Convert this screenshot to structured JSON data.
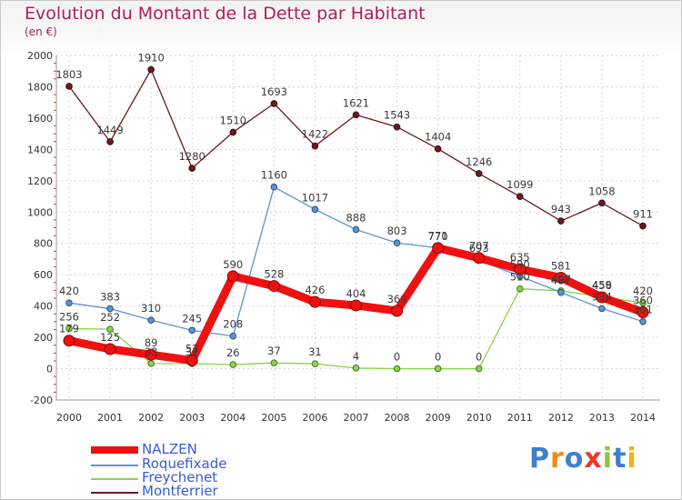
{
  "chart_data": {
    "type": "line",
    "title": "Evolution du Montant de la Dette par Habitant",
    "subtitle": "(en €)",
    "xlabel": "",
    "ylabel": "",
    "ylim": [
      -200,
      2000
    ],
    "yticks": [
      "-200",
      "0",
      "200",
      "400",
      "600",
      "800",
      "1000",
      "1200",
      "1400",
      "1600",
      "1800",
      "2000"
    ],
    "x": [
      "2000",
      "2001",
      "2002",
      "2003",
      "2004",
      "2005",
      "2006",
      "2007",
      "2008",
      "2009",
      "2010",
      "2011",
      "2012",
      "2013",
      "2014"
    ],
    "grid": true,
    "legend_position": "bottom-left",
    "series": [
      {
        "name": "Montferrier",
        "color": "#6b1a1e",
        "values": [
          1803,
          1449,
          1910,
          1280,
          1510,
          1693,
          1422,
          1621,
          1543,
          1404,
          1246,
          1099,
          943,
          1058,
          911
        ],
        "labels": [
          "1803",
          "1449",
          "1910",
          "1280",
          "1510",
          "1693",
          "1422",
          "1621",
          "1543",
          "1404",
          "1246",
          "1099",
          "943",
          "1058",
          "911"
        ]
      },
      {
        "name": "Freychenet",
        "color": "#88d44a",
        "values": [
          256,
          252,
          33,
          32,
          26,
          37,
          31,
          4,
          0,
          0,
          0,
          510,
          497,
          459,
          420
        ],
        "labels": [
          "256",
          "252",
          "33",
          "32",
          "26",
          "37",
          "31",
          "4",
          "0",
          "0",
          "0",
          "510",
          "497",
          "459",
          "420"
        ]
      },
      {
        "name": "Roquefixade",
        "color": "#5b94d2",
        "values": [
          420,
          383,
          310,
          245,
          208,
          1160,
          1017,
          888,
          803,
          771,
          693,
          590,
          487,
          384,
          301
        ],
        "labels": [
          "420",
          "383",
          "310",
          "245",
          "208",
          "1160",
          "1017",
          "888",
          "803",
          "771",
          "693",
          "590",
          "487",
          "384",
          "301"
        ]
      },
      {
        "name": "NALZEN",
        "color": "#ee1111",
        "values": [
          179,
          125,
          89,
          52,
          590,
          528,
          426,
          404,
          369,
          770,
          707,
          635,
          581,
          456,
          360
        ],
        "labels": [
          "179",
          "125",
          "89",
          "52",
          "590",
          "528",
          "426",
          "404",
          "369",
          "770",
          "707",
          "635",
          "581",
          "456",
          "360"
        ]
      }
    ],
    "legend": [
      "NALZEN",
      "Roquefixade",
      "Freychenet",
      "Montferrier"
    ]
  },
  "logo": {
    "text": "Proxiti",
    "letters": [
      {
        "ch": "P",
        "color": "#3f7fd0"
      },
      {
        "ch": "r",
        "color": "#f08a1a"
      },
      {
        "ch": "o",
        "color": "#3f7fd0"
      },
      {
        "ch": "x",
        "color": "#e8372b"
      },
      {
        "ch": "i",
        "color": "#8cc63f"
      },
      {
        "ch": "t",
        "color": "#3f7fd0"
      },
      {
        "ch": "i",
        "color": "#f0b21a"
      }
    ]
  }
}
